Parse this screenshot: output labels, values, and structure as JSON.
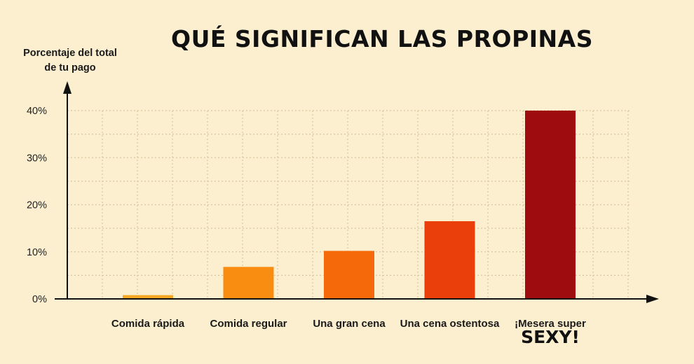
{
  "chart_data": {
    "type": "bar",
    "title": "QUÉ SIGNIFICAN LAS PROPINAS",
    "ylabel_lines": [
      "Porcentaje del total",
      "de tu pago"
    ],
    "xlabel": "",
    "ylim": [
      0,
      40
    ],
    "yticks": [
      0,
      10,
      20,
      30,
      40
    ],
    "ytick_labels": [
      "0%",
      "10%",
      "20%",
      "30%",
      "40%"
    ],
    "grid": true,
    "categories": [
      {
        "lines": [
          "Comida rápida"
        ],
        "emph": ""
      },
      {
        "lines": [
          "Comida regular"
        ],
        "emph": ""
      },
      {
        "lines": [
          "Una gran cena"
        ],
        "emph": ""
      },
      {
        "lines": [
          "Una cena ostentosa"
        ],
        "emph": ""
      },
      {
        "lines": [
          "¡Mesera super"
        ],
        "emph": "SEXY!"
      }
    ],
    "values": [
      0.8,
      6.8,
      10.2,
      16.5,
      40
    ],
    "colors": [
      "#f5a623",
      "#f98d12",
      "#f6690b",
      "#ea3f0a",
      "#9e0c0f"
    ]
  }
}
